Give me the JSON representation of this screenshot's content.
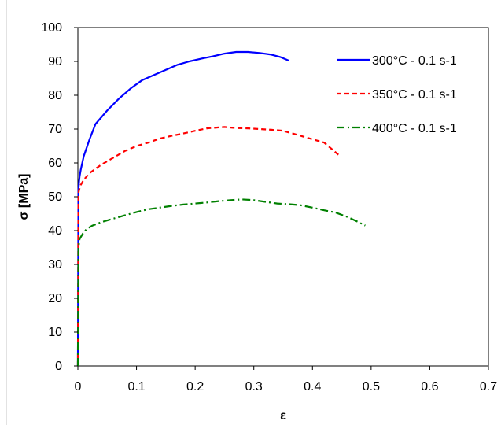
{
  "chart_data": {
    "type": "line",
    "title": "",
    "xlabel": "ε",
    "ylabel": "σ [MPa]",
    "xlim": [
      0,
      0.7
    ],
    "ylim": [
      0,
      100
    ],
    "x_ticks": [
      0,
      0.1,
      0.2,
      0.3,
      0.4,
      0.5,
      0.6,
      0.7
    ],
    "x_tick_labels": [
      "0",
      "0.1",
      "0.2",
      "0.3",
      "0.4",
      "0.5",
      "0.6",
      "0.7"
    ],
    "y_ticks": [
      0,
      10,
      20,
      30,
      40,
      50,
      60,
      70,
      80,
      90,
      100
    ],
    "y_tick_labels": [
      "0",
      "10",
      "20",
      "30",
      "40",
      "50",
      "60",
      "70",
      "80",
      "90",
      "100"
    ],
    "grid": false,
    "legend_position": "top-right",
    "series": [
      {
        "name": "300°C - 0.1 s-1",
        "color": "#0000ff",
        "dash": "solid",
        "x": [
          0,
          0.001,
          0.002,
          0.003,
          0.005,
          0.01,
          0.02,
          0.03,
          0.05,
          0.07,
          0.09,
          0.11,
          0.13,
          0.15,
          0.17,
          0.19,
          0.21,
          0.23,
          0.25,
          0.27,
          0.29,
          0.31,
          0.33,
          0.345,
          0.36
        ],
        "y": [
          0,
          52,
          54.5,
          56,
          58,
          62,
          67,
          71.5,
          75.5,
          79,
          82,
          84.5,
          86,
          87.5,
          89,
          90,
          90.8,
          91.5,
          92.3,
          92.8,
          92.8,
          92.5,
          92,
          91.3,
          90.2
        ]
      },
      {
        "name": "350°C - 0.1 s-1",
        "color": "#ff0000",
        "dash": "dashed",
        "x": [
          0,
          0.001,
          0.002,
          0.005,
          0.01,
          0.02,
          0.04,
          0.06,
          0.08,
          0.1,
          0.12,
          0.14,
          0.16,
          0.18,
          0.2,
          0.22,
          0.24,
          0.25,
          0.27,
          0.29,
          0.31,
          0.33,
          0.35,
          0.37,
          0.39,
          0.41,
          0.42,
          0.43,
          0.445
        ],
        "y": [
          0,
          51,
          52,
          53.5,
          55,
          57,
          59.5,
          61.5,
          63.5,
          65,
          66,
          67.2,
          68,
          68.7,
          69.5,
          70.2,
          70.5,
          70.6,
          70.3,
          70.2,
          70,
          69.8,
          69.5,
          68.5,
          67.5,
          66.5,
          66,
          64.5,
          62.3
        ]
      },
      {
        "name": "400°C - 0.1 s-1",
        "color": "#008000",
        "dash": "dashdot",
        "x": [
          0,
          0.001,
          0.003,
          0.008,
          0.015,
          0.025,
          0.04,
          0.06,
          0.08,
          0.1,
          0.12,
          0.14,
          0.16,
          0.18,
          0.2,
          0.22,
          0.24,
          0.26,
          0.28,
          0.3,
          0.32,
          0.34,
          0.36,
          0.38,
          0.4,
          0.42,
          0.44,
          0.46,
          0.475,
          0.49
        ],
        "y": [
          0,
          35,
          37.5,
          39,
          40.5,
          41.5,
          42.5,
          43.5,
          44.5,
          45.5,
          46.3,
          46.8,
          47.3,
          47.7,
          48,
          48.3,
          48.7,
          49,
          49.2,
          49,
          48.5,
          48,
          47.8,
          47.5,
          46.8,
          46,
          45.3,
          44,
          42.8,
          41.5
        ]
      }
    ]
  }
}
